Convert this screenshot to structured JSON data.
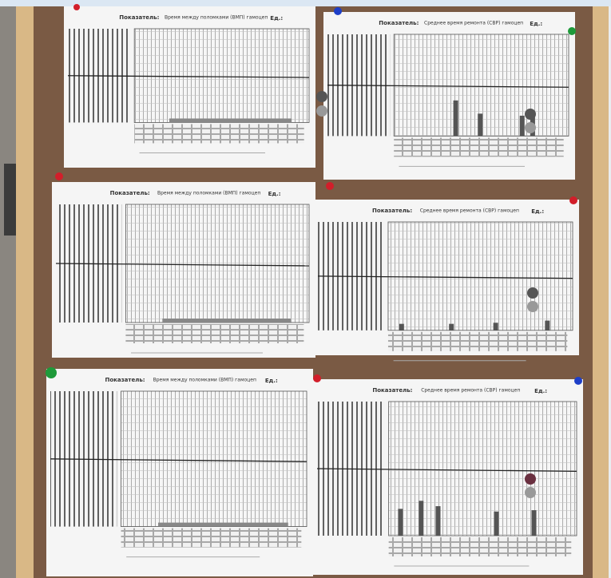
{
  "papers": [
    {
      "label": "Показатель:",
      "title": "Время между поломками (ВМП) гамоцеп",
      "unit": "Ед.:"
    },
    {
      "label": "Показатель:",
      "title": "Среднее время ремонта (СВР) гамоцеп",
      "unit": "Ед.:"
    },
    {
      "label": "Показатель:",
      "title": "Время между поломками (ВМП) гамоцеп",
      "unit": "Ед.:"
    },
    {
      "label": "Показатель:",
      "title": "Среднее время ремонта (СВР) гамоцеп",
      "unit": "Ед.:"
    },
    {
      "label": "Показатель:",
      "title": "Время между поломками (ВМП) гамоцеп",
      "unit": "Ед.:"
    },
    {
      "label": "Показатель:",
      "title": "Среднее время ремонта (СВР) гамоцеп",
      "unit": "Ед.:"
    }
  ]
}
